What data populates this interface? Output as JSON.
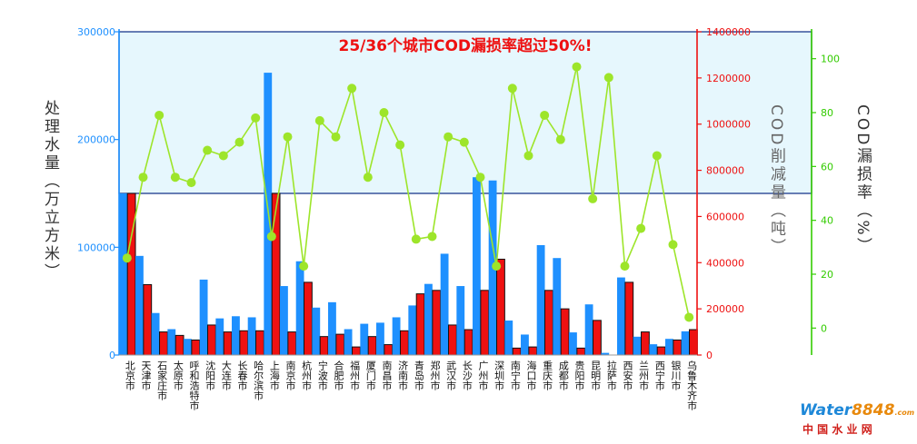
{
  "chart_data": {
    "type": "bar",
    "title": "25/36个城市COD漏损率超过50%!",
    "categories": [
      "北京市",
      "天津市",
      "石家庄市",
      "太原市",
      "呼和浩特市",
      "沈阳市",
      "大连市",
      "长春市",
      "哈尔滨市",
      "上海市",
      "南京市",
      "杭州市",
      "宁波市",
      "合肥市",
      "福州市",
      "厦门市",
      "南昌市",
      "济南市",
      "青岛市",
      "郑州市",
      "武汉市",
      "长沙市",
      "广州市",
      "深圳市",
      "南宁市",
      "海口市",
      "重庆市",
      "成都市",
      "贵阳市",
      "昆明市",
      "拉萨市",
      "西安市",
      "兰州市",
      "西宁市",
      "银川市",
      "乌鲁木齐市"
    ],
    "series": [
      {
        "name": "处理水量（万立方米）",
        "axis": "left",
        "color": "#1e90ff",
        "values": [
          150000,
          92000,
          39000,
          24000,
          15000,
          70000,
          34000,
          36000,
          35000,
          262000,
          64000,
          87000,
          44000,
          49000,
          24000,
          29000,
          30000,
          35000,
          46000,
          66000,
          94000,
          64000,
          165000,
          162000,
          32000,
          19000,
          102000,
          90000,
          21000,
          47000,
          2000,
          72000,
          17000,
          10000,
          15000,
          22000
        ]
      },
      {
        "name": "COD削减量（吨）",
        "axis": "right1",
        "color": "#ee1111",
        "values": [
          700000,
          305000,
          100000,
          85000,
          65000,
          130000,
          100000,
          105000,
          105000,
          700000,
          100000,
          315000,
          80000,
          90000,
          35000,
          80000,
          45000,
          105000,
          265000,
          280000,
          130000,
          110000,
          280000,
          415000,
          30000,
          35000,
          280000,
          200000,
          30000,
          150000,
          0,
          315000,
          100000,
          35000,
          65000,
          110000
        ]
      },
      {
        "name": "COD漏损率（%）",
        "axis": "right2",
        "color": "#9de52a",
        "values": [
          26,
          56,
          79,
          56,
          54,
          66,
          64,
          69,
          78,
          34,
          71,
          23,
          77,
          71,
          89,
          56,
          80,
          68,
          33,
          34,
          71,
          69,
          56,
          23,
          89,
          64,
          79,
          70,
          97,
          48,
          93,
          23,
          37,
          64,
          31,
          4
        ]
      }
    ],
    "y_axes": {
      "left": {
        "label": "处理水量（万立方米）",
        "min": 0,
        "max": 300000,
        "ticks": [
          0,
          100000,
          200000,
          300000
        ],
        "color": "#1e90ff"
      },
      "right1": {
        "label": "COD削减量（吨）",
        "min": 0,
        "max": 1400000,
        "ticks": [
          0,
          200000,
          400000,
          600000,
          800000,
          1000000,
          1200000,
          1400000
        ],
        "color": "#ee1111"
      },
      "right2": {
        "label": "COD漏损率（%）",
        "min": -10,
        "max": 110,
        "ticks": [
          0,
          20,
          40,
          60,
          80,
          100
        ],
        "color": "#33cc00"
      }
    },
    "highlight": {
      "axis": "right2",
      "from": 50,
      "to": 110,
      "fill": "#e6f7fd",
      "border": "#1b3a8c"
    },
    "grid": false
  },
  "watermark": {
    "brand_a": "Water",
    "brand_b": "8848",
    "brand_c": ".com",
    "cn": "中 国 水 业 网"
  }
}
